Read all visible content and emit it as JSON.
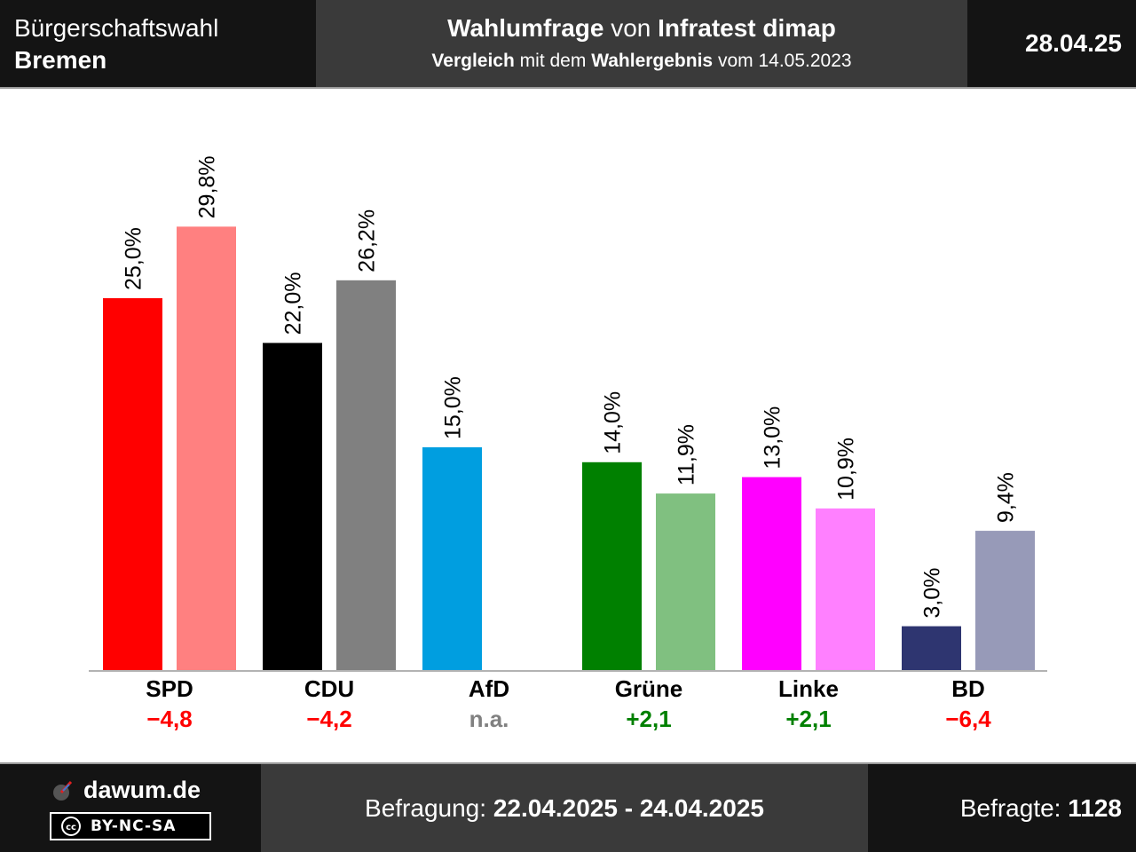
{
  "header": {
    "election_line1": "Bürgerschaftswahl",
    "election_line2": "Bremen",
    "title_bold1": "Wahlumfrage",
    "title_normal": "von",
    "title_bold2": "Infratest dimap",
    "subtitle_bold1": "Vergleich",
    "subtitle_normal1": "mit dem",
    "subtitle_bold2": "Wahlergebnis",
    "subtitle_normal2": "vom 14.05.2023",
    "date": "28.04.25"
  },
  "chart_data": {
    "type": "bar",
    "categories": [
      "SPD",
      "CDU",
      "AfD",
      "Grüne",
      "Linke",
      "BD"
    ],
    "series": [
      {
        "values": [
          25.0,
          22.0,
          15.0,
          14.0,
          13.0,
          3.0
        ],
        "labels": [
          "25,0%",
          "22,0%",
          "15,0%",
          "14,0%",
          "13,0%",
          "3,0%"
        ]
      },
      {
        "values": [
          29.8,
          26.2,
          null,
          11.9,
          10.9,
          9.4
        ],
        "labels": [
          "29,8%",
          "26,2%",
          "",
          "11,9%",
          "10,9%",
          "9,4%"
        ]
      }
    ],
    "colors_poll": [
      "#ff0000",
      "#000000",
      "#009ee0",
      "#008000",
      "#ff00ff",
      "#2e3570"
    ],
    "colors_result": [
      "#ff8080",
      "#808080",
      "#80cff0",
      "#80c080",
      "#ff80ff",
      "#979ab8"
    ],
    "changes": [
      "−4,8",
      "−4,2",
      "n.a.",
      "+2,1",
      "+2,1",
      "−6,4"
    ],
    "change_colors": [
      "#ff0000",
      "#ff0000",
      "#808080",
      "#008000",
      "#008000",
      "#ff0000"
    ],
    "ylim": [
      0,
      30
    ],
    "grid": false
  },
  "footer": {
    "brand": "dawum.de",
    "license": "BY-NC-SA",
    "survey_label": "Befragung:",
    "survey_period": "22.04.2025 - 24.04.2025",
    "respondents_label": "Befragte:",
    "respondents": "1128"
  }
}
